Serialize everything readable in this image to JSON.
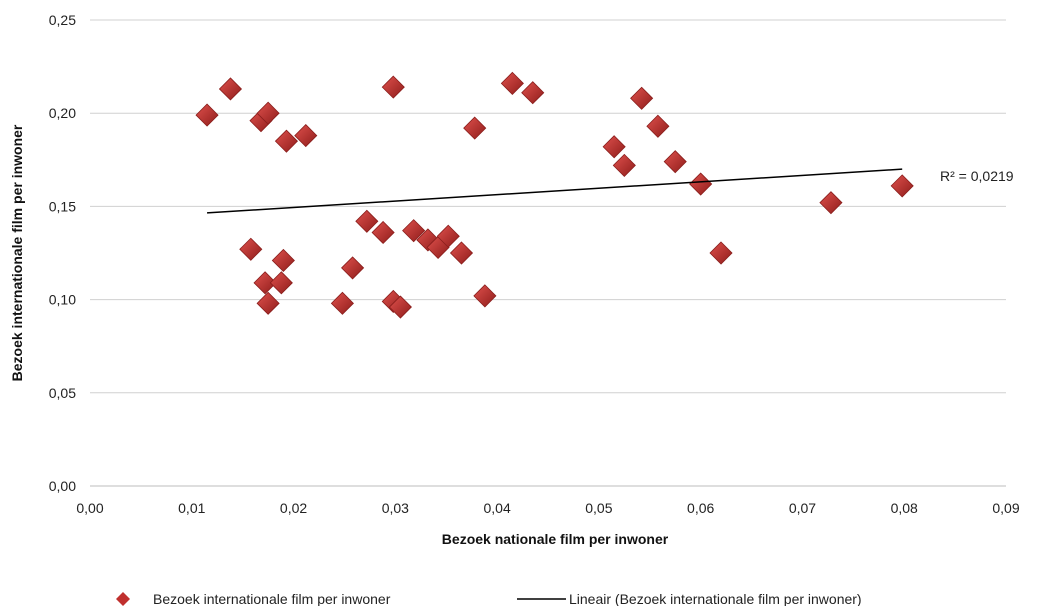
{
  "chart_data": {
    "type": "scatter",
    "title": "",
    "xlabel": "Bezoek nationale film per inwoner",
    "ylabel": "Bezoek internationale film per inwoner",
    "xlim": [
      0,
      0.09
    ],
    "ylim": [
      0,
      0.25
    ],
    "x_ticks": [
      "0,00",
      "0,01",
      "0,02",
      "0,03",
      "0,04",
      "0,05",
      "0,06",
      "0,07",
      "0,08",
      "0,09"
    ],
    "y_ticks": [
      "0,00",
      "0,05",
      "0,10",
      "0,15",
      "0,20",
      "0,25"
    ],
    "grid": "horizontal",
    "legend_position": "bottom",
    "colors": {
      "marker": "#c0302e",
      "marker_dark": "#8e1c1a",
      "trend": "#000000",
      "grid": "#d0d0d0"
    },
    "series": [
      {
        "name": "Bezoek internationale film per inwoner",
        "points": [
          {
            "x": 0.0115,
            "y": 0.199
          },
          {
            "x": 0.0138,
            "y": 0.213
          },
          {
            "x": 0.0158,
            "y": 0.127
          },
          {
            "x": 0.0168,
            "y": 0.196
          },
          {
            "x": 0.0172,
            "y": 0.109
          },
          {
            "x": 0.0175,
            "y": 0.2
          },
          {
            "x": 0.0175,
            "y": 0.098
          },
          {
            "x": 0.0188,
            "y": 0.109
          },
          {
            "x": 0.019,
            "y": 0.121
          },
          {
            "x": 0.0193,
            "y": 0.185
          },
          {
            "x": 0.0212,
            "y": 0.188
          },
          {
            "x": 0.0248,
            "y": 0.098
          },
          {
            "x": 0.0258,
            "y": 0.117
          },
          {
            "x": 0.0272,
            "y": 0.142
          },
          {
            "x": 0.0288,
            "y": 0.136
          },
          {
            "x": 0.0298,
            "y": 0.214
          },
          {
            "x": 0.0298,
            "y": 0.099
          },
          {
            "x": 0.0305,
            "y": 0.096
          },
          {
            "x": 0.0318,
            "y": 0.137
          },
          {
            "x": 0.0332,
            "y": 0.132
          },
          {
            "x": 0.0342,
            "y": 0.128
          },
          {
            "x": 0.0352,
            "y": 0.134
          },
          {
            "x": 0.0365,
            "y": 0.125
          },
          {
            "x": 0.0378,
            "y": 0.192
          },
          {
            "x": 0.0388,
            "y": 0.102
          },
          {
            "x": 0.0415,
            "y": 0.216
          },
          {
            "x": 0.0435,
            "y": 0.211
          },
          {
            "x": 0.0515,
            "y": 0.182
          },
          {
            "x": 0.0525,
            "y": 0.172
          },
          {
            "x": 0.0542,
            "y": 0.208
          },
          {
            "x": 0.0558,
            "y": 0.193
          },
          {
            "x": 0.0575,
            "y": 0.174
          },
          {
            "x": 0.06,
            "y": 0.162
          },
          {
            "x": 0.062,
            "y": 0.125
          },
          {
            "x": 0.0728,
            "y": 0.152
          },
          {
            "x": 0.0798,
            "y": 0.161
          }
        ]
      },
      {
        "name": "Lineair (Bezoek internationale film per inwoner)",
        "type": "trendline",
        "points": [
          {
            "x": 0.0115,
            "y": 0.1465
          },
          {
            "x": 0.0798,
            "y": 0.17
          }
        ]
      }
    ],
    "annotation": "R² = 0,0219"
  }
}
